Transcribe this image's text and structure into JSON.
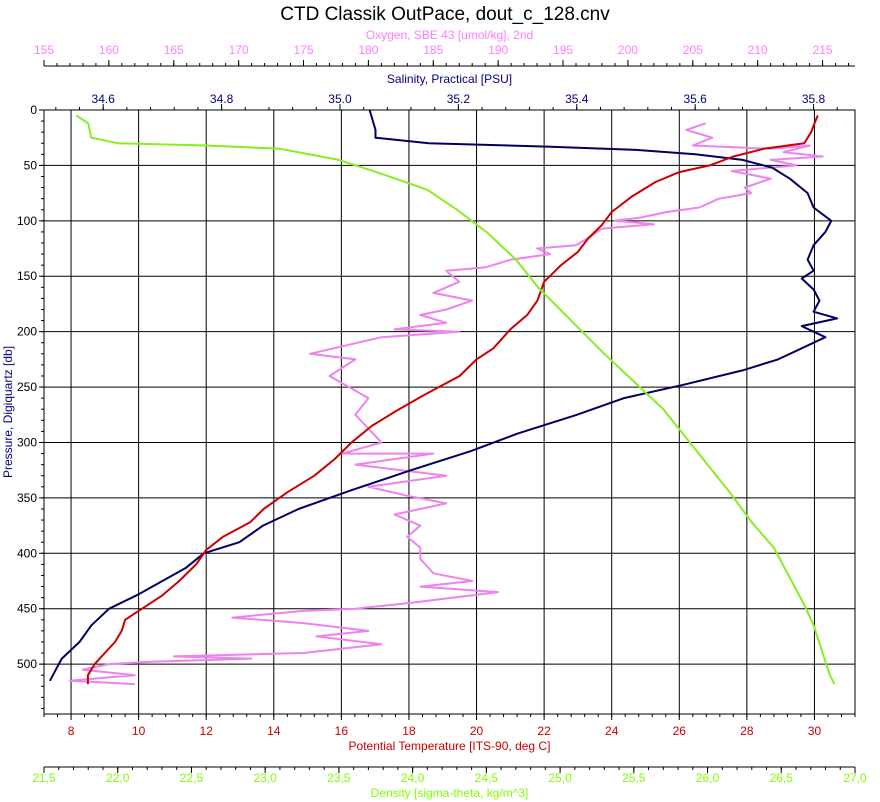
{
  "chart_data": {
    "type": "line",
    "title": "CTD Classik OutPace, dout_c_128.cnv",
    "grid": true,
    "legend": "none",
    "y_axis": {
      "label": "Pressure, Digiquartz [db]",
      "range": [
        0,
        545
      ],
      "inverted": true,
      "ticks": [
        0,
        50,
        100,
        150,
        200,
        250,
        300,
        350,
        400,
        450,
        500
      ],
      "tick_labels": [
        "0",
        "50",
        "100",
        "150",
        "200",
        "250",
        "300",
        "350",
        "400",
        "450",
        "500"
      ]
    },
    "x_axes": [
      {
        "key": "oxygen",
        "label": "Oxygen, SBE 43 [umol/kg], 2nd",
        "color": "#ff7fff",
        "position": "top",
        "range": [
          155,
          217.5
        ],
        "ticks": [
          155,
          160,
          165,
          170,
          175,
          180,
          185,
          190,
          195,
          200,
          205,
          210,
          215
        ],
        "tick_labels": [
          "155",
          "160",
          "165",
          "170",
          "175",
          "180",
          "185",
          "190",
          "195",
          "200",
          "205",
          "210",
          "215"
        ],
        "line_color": "#ee82ee"
      },
      {
        "key": "salinity",
        "label": "Salinity, Practical [PSU]",
        "color": "#000080",
        "position": "top",
        "range": [
          34.5,
          35.87
        ],
        "ticks": [
          34.6,
          34.8,
          35.0,
          35.2,
          35.4,
          35.6,
          35.8
        ],
        "tick_labels": [
          "34.6",
          "34.8",
          "35.0",
          "35.2",
          "35.4",
          "35.6",
          "35.8"
        ],
        "line_color": "#000060"
      },
      {
        "key": "temperature",
        "label": "Potential Temperature [ITS-90, deg C]",
        "color": "#cc0000",
        "position": "bottom",
        "range": [
          7.2,
          31.2
        ],
        "ticks": [
          8,
          10,
          12,
          14,
          16,
          18,
          20,
          22,
          24,
          26,
          28,
          30
        ],
        "tick_labels": [
          "8",
          "10",
          "12",
          "14",
          "16",
          "18",
          "20",
          "22",
          "24",
          "26",
          "28",
          "30"
        ],
        "line_color": "#cc0000"
      },
      {
        "key": "density",
        "label": "Density [sigma-theta, kg/m^3]",
        "color": "#7fff00",
        "position": "bottom",
        "range": [
          21.5,
          27.0
        ],
        "ticks": [
          21.5,
          22.0,
          22.5,
          23.0,
          23.5,
          24.0,
          24.5,
          25.0,
          25.5,
          26.0,
          26.5,
          27.0
        ],
        "tick_labels": [
          "21,5",
          "22,0",
          "22,5",
          "23,0",
          "23,5",
          "24,0",
          "24,5",
          "25,0",
          "25,5",
          "26,0",
          "26,5",
          "27,0"
        ],
        "line_color": "#88ee22"
      }
    ],
    "series": [
      {
        "name": "Oxygen, SBE 43 [umol/kg], 2nd",
        "axis": "oxygen",
        "points": [
          [
            206,
            12
          ],
          [
            204.5,
            18
          ],
          [
            206.5,
            25
          ],
          [
            205,
            32
          ],
          [
            211,
            35
          ],
          [
            214,
            32
          ],
          [
            212,
            38
          ],
          [
            215,
            42
          ],
          [
            211,
            45
          ],
          [
            213,
            50
          ],
          [
            208,
            55
          ],
          [
            211,
            62
          ],
          [
            209,
            70
          ],
          [
            209.5,
            75
          ],
          [
            207,
            80
          ],
          [
            205.5,
            88
          ],
          [
            203,
            92
          ],
          [
            201,
            97
          ],
          [
            199,
            100
          ],
          [
            202,
            103
          ],
          [
            198,
            107
          ],
          [
            197,
            115
          ],
          [
            196,
            122
          ],
          [
            193,
            125
          ],
          [
            194,
            130
          ],
          [
            191,
            135
          ],
          [
            189,
            142
          ],
          [
            186,
            145
          ],
          [
            187,
            155
          ],
          [
            185,
            165
          ],
          [
            188,
            172
          ],
          [
            186,
            180
          ],
          [
            184,
            185
          ],
          [
            186,
            192
          ],
          [
            182,
            198
          ],
          [
            187,
            200
          ],
          [
            181,
            205
          ],
          [
            175.5,
            220
          ],
          [
            179,
            225
          ],
          [
            177,
            240
          ],
          [
            180,
            260
          ],
          [
            179,
            275
          ],
          [
            181,
            300
          ],
          [
            178,
            310
          ],
          [
            185,
            310
          ],
          [
            179,
            320
          ],
          [
            186,
            330
          ],
          [
            180,
            340
          ],
          [
            183,
            348
          ],
          [
            186,
            355
          ],
          [
            182,
            365
          ],
          [
            184,
            375
          ],
          [
            183,
            385
          ],
          [
            184,
            395
          ],
          [
            184,
            405
          ],
          [
            185,
            418
          ],
          [
            188,
            425
          ],
          [
            184,
            430
          ],
          [
            190,
            435
          ],
          [
            183,
            445
          ],
          [
            179,
            450
          ],
          [
            175,
            452
          ],
          [
            169.5,
            458
          ],
          [
            175,
            463
          ],
          [
            180,
            470
          ],
          [
            176,
            475
          ],
          [
            181,
            482
          ],
          [
            175,
            490
          ],
          [
            165,
            493
          ],
          [
            171,
            495
          ],
          [
            163,
            498
          ],
          [
            160,
            500
          ],
          [
            158,
            505
          ],
          [
            162,
            510
          ],
          [
            157,
            515
          ],
          [
            162,
            518
          ]
        ]
      },
      {
        "name": "Salinity, Practical [PSU]",
        "axis": "salinity",
        "points": [
          [
            35.05,
            0
          ],
          [
            35.06,
            18
          ],
          [
            35.06,
            25
          ],
          [
            35.15,
            30
          ],
          [
            35.35,
            33
          ],
          [
            35.5,
            36
          ],
          [
            35.6,
            40
          ],
          [
            35.68,
            45
          ],
          [
            35.73,
            52
          ],
          [
            35.76,
            62
          ],
          [
            35.79,
            75
          ],
          [
            35.8,
            88
          ],
          [
            35.83,
            100
          ],
          [
            35.82,
            110
          ],
          [
            35.8,
            122
          ],
          [
            35.79,
            135
          ],
          [
            35.8,
            145
          ],
          [
            35.78,
            152
          ],
          [
            35.8,
            162
          ],
          [
            35.81,
            172
          ],
          [
            35.8,
            182
          ],
          [
            35.84,
            188
          ],
          [
            35.78,
            195
          ],
          [
            35.82,
            205
          ],
          [
            35.78,
            215
          ],
          [
            35.74,
            225
          ],
          [
            35.68,
            235
          ],
          [
            35.58,
            248
          ],
          [
            35.48,
            260
          ],
          [
            35.4,
            275
          ],
          [
            35.3,
            292
          ],
          [
            35.22,
            308
          ],
          [
            35.12,
            325
          ],
          [
            35.02,
            343
          ],
          [
            34.93,
            360
          ],
          [
            34.87,
            375
          ],
          [
            34.83,
            390
          ],
          [
            34.77,
            400
          ],
          [
            34.74,
            413
          ],
          [
            34.7,
            425
          ],
          [
            34.66,
            437
          ],
          [
            34.61,
            450
          ],
          [
            34.58,
            465
          ],
          [
            34.56,
            480
          ],
          [
            34.53,
            495
          ],
          [
            34.52,
            505
          ],
          [
            34.51,
            515
          ]
        ]
      },
      {
        "name": "Potential Temperature [ITS-90, deg C]",
        "axis": "temperature",
        "points": [
          [
            30.1,
            5
          ],
          [
            30.0,
            12
          ],
          [
            29.9,
            20
          ],
          [
            29.7,
            30
          ],
          [
            28.5,
            35
          ],
          [
            27.6,
            42
          ],
          [
            26.9,
            50
          ],
          [
            26.0,
            56
          ],
          [
            25.3,
            65
          ],
          [
            24.6,
            78
          ],
          [
            24.0,
            92
          ],
          [
            23.7,
            104
          ],
          [
            23.3,
            116
          ],
          [
            23.0,
            128
          ],
          [
            22.5,
            140
          ],
          [
            22.0,
            155
          ],
          [
            21.8,
            172
          ],
          [
            21.5,
            185
          ],
          [
            21.0,
            198
          ],
          [
            20.5,
            215
          ],
          [
            20.0,
            225
          ],
          [
            19.5,
            240
          ],
          [
            18.4,
            258
          ],
          [
            17.6,
            272
          ],
          [
            16.9,
            285
          ],
          [
            16.3,
            300
          ],
          [
            15.8,
            315
          ],
          [
            15.2,
            330
          ],
          [
            14.4,
            345
          ],
          [
            13.7,
            360
          ],
          [
            13.3,
            372
          ],
          [
            12.5,
            385
          ],
          [
            12.0,
            397
          ],
          [
            11.7,
            410
          ],
          [
            11.2,
            425
          ],
          [
            10.7,
            438
          ],
          [
            10.0,
            452
          ],
          [
            9.6,
            460
          ],
          [
            9.5,
            470
          ],
          [
            9.3,
            480
          ],
          [
            9.0,
            490
          ],
          [
            8.7,
            500
          ],
          [
            8.5,
            510
          ],
          [
            8.5,
            518
          ]
        ]
      },
      {
        "name": "Density [sigma-theta, kg/m^3]",
        "axis": "density",
        "points": [
          [
            21.72,
            5
          ],
          [
            21.8,
            12
          ],
          [
            21.82,
            25
          ],
          [
            22.0,
            30
          ],
          [
            22.6,
            32
          ],
          [
            23.1,
            35
          ],
          [
            23.5,
            45
          ],
          [
            23.8,
            58
          ],
          [
            24.1,
            72
          ],
          [
            24.3,
            90
          ],
          [
            24.5,
            110
          ],
          [
            24.7,
            135
          ],
          [
            24.85,
            160
          ],
          [
            25.0,
            180
          ],
          [
            25.15,
            200
          ],
          [
            25.3,
            220
          ],
          [
            25.5,
            245
          ],
          [
            25.7,
            270
          ],
          [
            25.85,
            295
          ],
          [
            26.0,
            320
          ],
          [
            26.15,
            345
          ],
          [
            26.3,
            372
          ],
          [
            26.45,
            395
          ],
          [
            26.55,
            420
          ],
          [
            26.65,
            445
          ],
          [
            26.72,
            465
          ],
          [
            26.78,
            490
          ],
          [
            26.83,
            510
          ],
          [
            26.86,
            518
          ]
        ]
      }
    ]
  }
}
